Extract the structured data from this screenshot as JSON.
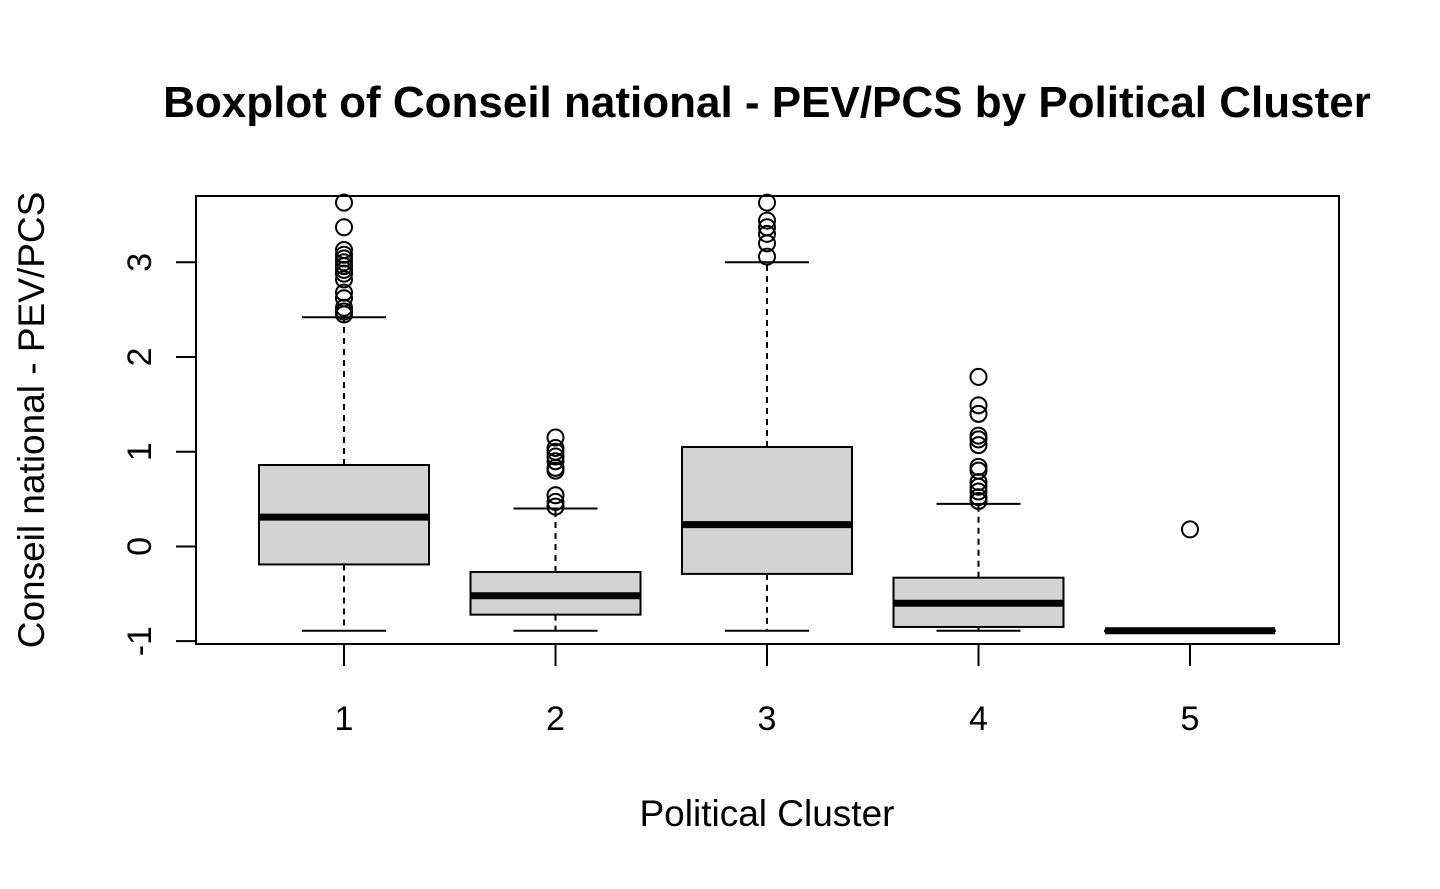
{
  "chart_data": {
    "type": "boxplot",
    "title": "Boxplot of Conseil national - PEV/PCS by Political Cluster",
    "xlabel": "Political Cluster",
    "ylabel": "Conseil national - PEV/PCS",
    "categories": [
      "1",
      "2",
      "3",
      "4",
      "5"
    ],
    "y_ticks": [
      "-1",
      "0",
      "1",
      "2",
      "3"
    ],
    "ylim": [
      -1.03,
      3.7
    ],
    "grid": false,
    "box_fill": "#d3d3d3",
    "stroke": "#000000",
    "boxes": [
      {
        "label": "1",
        "whisker_low": -0.89,
        "q1": -0.19,
        "median": 0.31,
        "q3": 0.86,
        "whisker_high": 2.42,
        "outliers": [
          2.45,
          2.48,
          2.52,
          2.62,
          2.68,
          2.82,
          2.88,
          2.92,
          2.96,
          3.0,
          3.04,
          3.08,
          3.13,
          3.37,
          3.63
        ]
      },
      {
        "label": "2",
        "whisker_low": -0.89,
        "q1": -0.72,
        "median": -0.52,
        "q3": -0.27,
        "whisker_high": 0.4,
        "outliers": [
          0.42,
          0.47,
          0.54,
          0.8,
          0.83,
          0.9,
          0.95,
          1.0,
          1.04,
          1.15
        ]
      },
      {
        "label": "3",
        "whisker_low": -0.89,
        "q1": -0.29,
        "median": 0.23,
        "q3": 1.05,
        "whisker_high": 3.0,
        "outliers": [
          3.06,
          3.2,
          3.3,
          3.37,
          3.44,
          3.63
        ]
      },
      {
        "label": "4",
        "whisker_low": -0.89,
        "q1": -0.85,
        "median": -0.6,
        "q3": -0.33,
        "whisker_high": 0.45,
        "outliers": [
          0.48,
          0.52,
          0.58,
          0.63,
          0.68,
          0.8,
          0.84,
          1.07,
          1.13,
          1.17,
          1.4,
          1.49,
          1.79
        ]
      },
      {
        "label": "5",
        "whisker_low": -0.89,
        "q1": -0.89,
        "median": -0.89,
        "q3": -0.89,
        "whisker_high": -0.89,
        "outliers": [
          0.18
        ]
      }
    ]
  }
}
